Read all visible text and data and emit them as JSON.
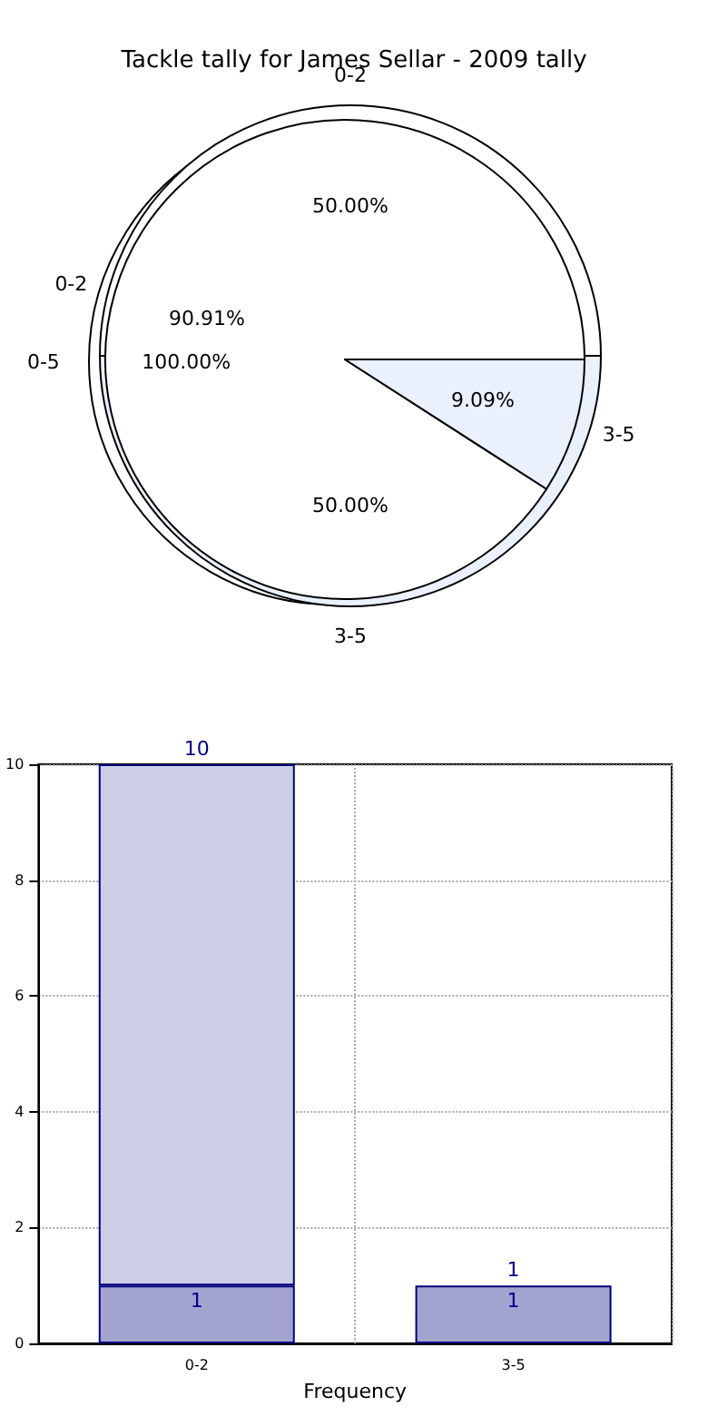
{
  "chart_data": [
    {
      "type": "pie",
      "title": "Tackle tally for James Sellar - 2009 tally",
      "categories": [
        "0-5"
      ],
      "values": [
        100
      ],
      "value_labels": [
        "100.00%"
      ],
      "colors": [
        "#ffffff"
      ]
    },
    {
      "type": "pie",
      "categories": [
        "0-2",
        "3-5"
      ],
      "values": [
        50,
        50
      ],
      "value_labels": [
        "50.00%",
        "50.00%"
      ],
      "colors": [
        "#ffffff",
        "#eaf0fc"
      ]
    },
    {
      "type": "pie",
      "categories": [
        "0-2",
        "3-5"
      ],
      "values": [
        90.91,
        9.09
      ],
      "value_labels": [
        "90.91%",
        "9.09%"
      ],
      "colors": [
        "#ffffff",
        "#eaf0fc"
      ]
    },
    {
      "type": "bar",
      "xlabel": "Frequency",
      "categories": [
        "0-2",
        "3-5"
      ],
      "ylim": [
        0,
        10
      ],
      "yticks": [
        0,
        2,
        4,
        6,
        8,
        10
      ],
      "grid": true,
      "stacked": true,
      "totals": [
        "10",
        "1"
      ],
      "series": [
        {
          "color": "#a3a3cf",
          "values": [
            1,
            1
          ],
          "value_labels": [
            "1",
            "1"
          ]
        },
        {
          "color": "#cdcde6",
          "values": [
            9,
            null
          ]
        }
      ]
    }
  ]
}
